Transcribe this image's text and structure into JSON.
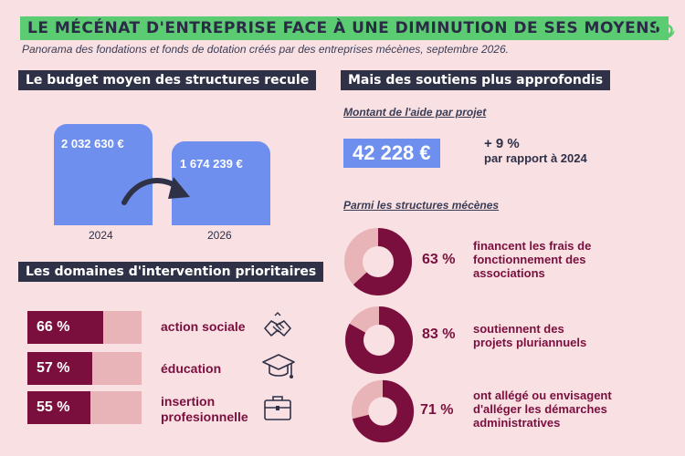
{
  "header": {
    "title": "LE MÉCÉNAT D'ENTREPRISE FACE À UNE DIMINUTION DE SES MOYENS",
    "subtitle": "Panorama des fondations et fonds de dotation créés par des entreprises mécènes, septembre 2026.",
    "logo_icon": "leaf-swirl-logo-icon"
  },
  "budget": {
    "heading": "Le budget moyen des structures recule",
    "bars": [
      {
        "year": "2024",
        "value_label": "2 032 630 €",
        "value": 2032630
      },
      {
        "year": "2026",
        "value_label": "1 674 239 €",
        "value": 1674239
      }
    ],
    "arrow_icon": "curved-arrow-icon"
  },
  "domains": {
    "heading": "Les domaines d'intervention prioritaires",
    "items": [
      {
        "pct_label": "66 %",
        "fraction": 0.66,
        "label": "action sociale",
        "icon": "handshake-icon"
      },
      {
        "pct_label": "57 %",
        "fraction": 0.57,
        "label": "éducation",
        "icon": "graduation-cap-icon"
      },
      {
        "pct_label": "55 %",
        "fraction": 0.55,
        "label": "insertion profesionnelle",
        "icon": "briefcase-icon"
      }
    ]
  },
  "support": {
    "heading": "Mais des soutiens plus approfondis",
    "amount_title": "Montant de l'aide par projet",
    "amount_value": "42 228 €",
    "delta_pct": "+ 9 %",
    "delta_text": "par rapport à 2024",
    "structures_title": "Parmi les structures mécènes",
    "stats": [
      {
        "pct_label": "63 %",
        "fraction": 0.63,
        "text": "financent les frais de fonctionnement des associations"
      },
      {
        "pct_label": "83 %",
        "fraction": 0.83,
        "text": "soutiennent des projets pluriannuels"
      },
      {
        "pct_label": "71 %",
        "fraction": 0.71,
        "text": "ont allégé ou envisagent d'alléger les démarches administratives"
      }
    ]
  },
  "colors": {
    "background": "#f9e0e3",
    "title_green": "#5ccc73",
    "dark_navy": "#2f3147",
    "bar_blue": "#6f8fef",
    "burgundy": "#7a0f3e",
    "light_pink": "#e8b4b7"
  }
}
